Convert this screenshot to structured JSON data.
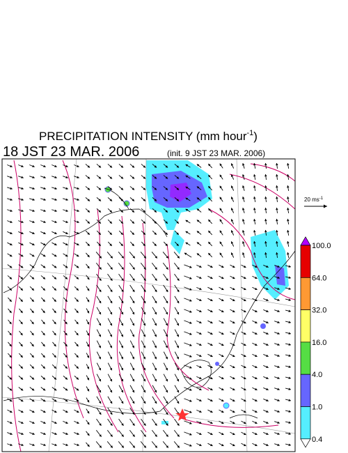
{
  "title": "PRECIPITATION INTENSITY (mm hour",
  "title_sup": "-1",
  "title_end": ")",
  "valid_time": "18 JST 23 MAR. 2006",
  "init": "(init. 9 JST 23 MAR. 2006)",
  "scale_label": "20 ms",
  "scale_sup": "-1",
  "colorbar": {
    "labels": [
      "100.0",
      "64.0",
      "32.0",
      "16.0",
      "4.0",
      "1.0",
      "0.4"
    ],
    "colors": [
      "#e60000",
      "#ff9933",
      "#ffff66",
      "#55dd44",
      "#6666ff",
      "#55eeff"
    ],
    "over_color": "#b000ff",
    "under_color": "#ffffff"
  }
}
